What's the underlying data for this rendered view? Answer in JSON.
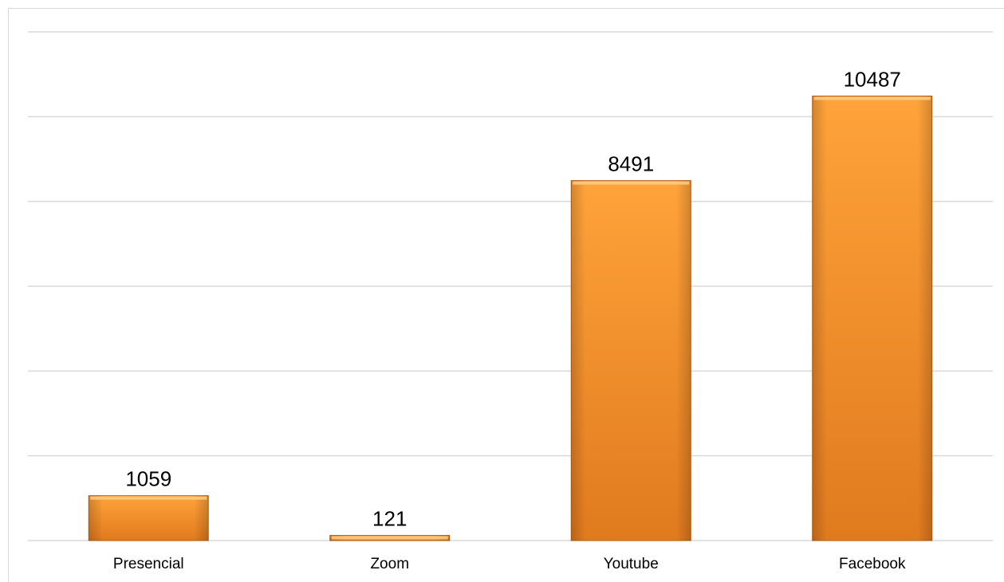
{
  "chart_data": {
    "type": "bar",
    "title": "",
    "xlabel": "",
    "ylabel": "",
    "categories": [
      "Presencial",
      "Zoom",
      "Youtube",
      "Facebook"
    ],
    "values": [
      1059,
      121,
      8491,
      10487
    ],
    "ylim": [
      0,
      12000
    ],
    "grid": true,
    "gridlines": [
      0,
      2000,
      4000,
      6000,
      8000,
      10000,
      12000
    ],
    "y_tick_labels_shown": false,
    "legend": "none",
    "data_labels": true,
    "colors": {
      "bar_top": "#ffa33a",
      "bar_bottom": "#e07a1e",
      "bar_edge": "#b85f14",
      "grid": "#d9d9d9"
    }
  }
}
